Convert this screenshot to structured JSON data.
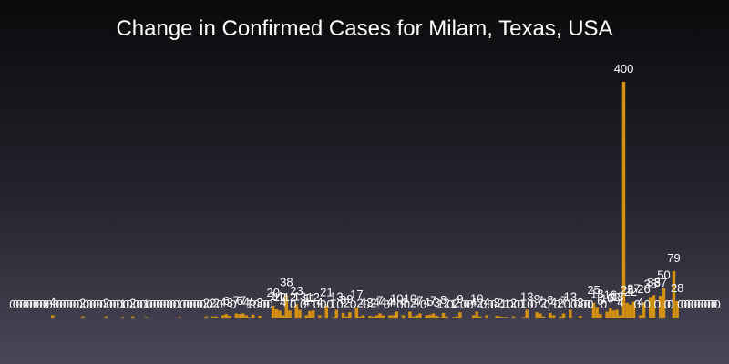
{
  "chart_data": {
    "type": "bar",
    "title": "Change in Confirmed Cases for Milam, Texas, USA",
    "xlabel": "",
    "ylabel": "",
    "ylim": [
      0,
      400
    ],
    "grid": false,
    "legend": "none",
    "bar_color": "#d4900f",
    "label_color": "#ffffff",
    "values": [
      0,
      0,
      0,
      0,
      0,
      0,
      0,
      0,
      0,
      0,
      0,
      0,
      4,
      0,
      0,
      0,
      0,
      0,
      0,
      0,
      0,
      2,
      0,
      0,
      0,
      0,
      0,
      0,
      2,
      0,
      0,
      0,
      0,
      1,
      0,
      0,
      2,
      0,
      0,
      0,
      1,
      0,
      0,
      0,
      0,
      0,
      0,
      0,
      0,
      0,
      1,
      0,
      0,
      0,
      0,
      0,
      0,
      0,
      2,
      0,
      2,
      2,
      0,
      4,
      6,
      3,
      0,
      7,
      6,
      7,
      4,
      1,
      5,
      0,
      3,
      0,
      0,
      0,
      20,
      14,
      12,
      4,
      38,
      12,
      0,
      23,
      13,
      0,
      4,
      11,
      12,
      0,
      4,
      0,
      21,
      0,
      1,
      13,
      0,
      8,
      2,
      9,
      0,
      17,
      2,
      4,
      0,
      3,
      2,
      4,
      7,
      4,
      0,
      4,
      4,
      10,
      0,
      4,
      0,
      10,
      2,
      4,
      7,
      0,
      4,
      5,
      7,
      3,
      1,
      8,
      2,
      0,
      1,
      2,
      9,
      0,
      0,
      0,
      4,
      10,
      2,
      0,
      4,
      0,
      0,
      3,
      2,
      1,
      1,
      0,
      2,
      0,
      0,
      1,
      13,
      0,
      0,
      9,
      7,
      2,
      0,
      8,
      4,
      0,
      2,
      7,
      0,
      13,
      0,
      0,
      3,
      0,
      0,
      0,
      25,
      18,
      6,
      0,
      10,
      16,
      12,
      13,
      4,
      400,
      25,
      22,
      27,
      0,
      4,
      26,
      0,
      35,
      38,
      0,
      37,
      50,
      0,
      0,
      79,
      28,
      0,
      0,
      0,
      0,
      0,
      0,
      0,
      0,
      0,
      0,
      0,
      0
    ]
  }
}
